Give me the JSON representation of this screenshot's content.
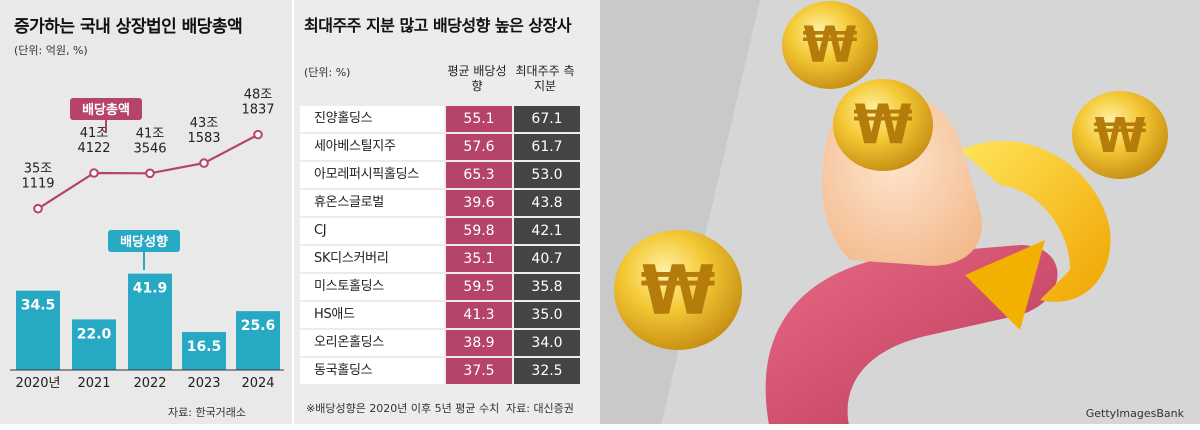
{
  "left": {
    "title": "증가하는 국내 상장법인 배당총액",
    "unit": "(단위: 억원, %)",
    "source": "자료: 한국거래소"
  },
  "mid": {
    "title": "최대주주 지분 많고 배당성향 높은 상장사",
    "unit": "(단위: %)",
    "col1": "평균 배당성향",
    "col2": "최대주주 측 지분",
    "footnote": "※배당성향은 2020년 이후 5년 평균 수치",
    "source": "자료: 대신증권"
  },
  "right": {
    "watermark": "GettyImagesBank"
  },
  "colors": {
    "line": "#b5436c",
    "bar": "#27a9c4",
    "payout_col": "#b5436c",
    "stake_col": "#444444"
  },
  "chart_data": [
    {
      "type": "line",
      "series_label": "배당총액",
      "categories": [
        "2020년",
        "2021",
        "2022",
        "2023",
        "2024"
      ],
      "labels_top": [
        "35조",
        "41조",
        "41조",
        "43조",
        "48조"
      ],
      "labels_bottom": [
        "1119",
        "4122",
        "3546",
        "1583",
        "1837"
      ],
      "values": [
        351119,
        414122,
        413546,
        431583,
        481837
      ],
      "unit": "억원"
    },
    {
      "type": "bar",
      "series_label": "배당성향",
      "categories": [
        "2020년",
        "2021",
        "2022",
        "2023",
        "2024"
      ],
      "values": [
        34.5,
        22.0,
        41.9,
        16.5,
        25.6
      ],
      "value_labels": [
        "34.5",
        "22.0",
        "41.9",
        "16.5",
        "25.6"
      ],
      "unit": "%"
    },
    {
      "type": "table",
      "columns": [
        "평균 배당성향",
        "최대주주 측 지분"
      ],
      "rows": [
        {
          "name": "진양홀딩스",
          "payout": "55.1",
          "stake": "67.1"
        },
        {
          "name": "세아베스틸지주",
          "payout": "57.6",
          "stake": "61.7"
        },
        {
          "name": "아모레퍼시픽홀딩스",
          "payout": "65.3",
          "stake": "53.0"
        },
        {
          "name": "휴온스글로벌",
          "payout": "39.6",
          "stake": "43.8"
        },
        {
          "name": "CJ",
          "payout": "59.8",
          "stake": "42.1"
        },
        {
          "name": "SK디스커버리",
          "payout": "35.1",
          "stake": "40.7"
        },
        {
          "name": "미스토홀딩스",
          "payout": "59.5",
          "stake": "35.8"
        },
        {
          "name": "HS애드",
          "payout": "41.3",
          "stake": "35.0"
        },
        {
          "name": "오리온홀딩스",
          "payout": "38.9",
          "stake": "34.0"
        },
        {
          "name": "동국홀딩스",
          "payout": "37.5",
          "stake": "32.5"
        }
      ]
    }
  ]
}
